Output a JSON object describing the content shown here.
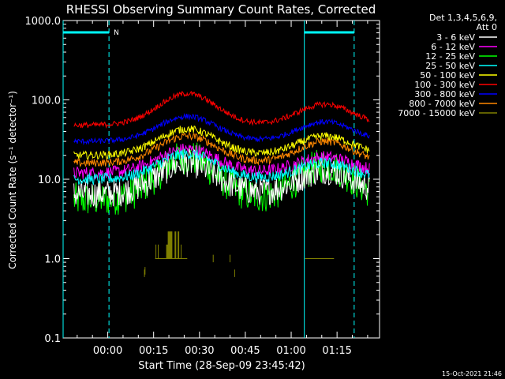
{
  "chart_data": {
    "type": "line",
    "title": "RHESSI Observing Summary Count Rates, Corrected",
    "xlabel": "Start Time (28-Sep-09 23:45:42)",
    "ylabel": "Corrected Count Rate (s⁻¹ detector⁻¹)",
    "yscale": "log",
    "ylim": [
      0.1,
      1000
    ],
    "xlim_minutes": [
      -14.6,
      88.9
    ],
    "yticks": [
      {
        "value": 1000,
        "label": "1000.0"
      },
      {
        "value": 100,
        "label": "100.0"
      },
      {
        "value": 10,
        "label": "10.0"
      },
      {
        "value": 1,
        "label": "1.0"
      },
      {
        "value": 0.1,
        "label": "0.1"
      }
    ],
    "xticks": [
      {
        "value": 0,
        "label": "00:00"
      },
      {
        "value": 15,
        "label": "00:15"
      },
      {
        "value": 30,
        "label": "00:30"
      },
      {
        "value": 45,
        "label": "00:45"
      },
      {
        "value": 60,
        "label": "01:00"
      },
      {
        "value": 75,
        "label": "01:15"
      }
    ],
    "legend_header": [
      "Det 1,3,4,5,6,9,",
      "Att 0"
    ],
    "legend_position": "right",
    "night_marker": "N",
    "night_intervals_minutes": [
      [
        -14.6,
        0.4
      ],
      [
        64.3,
        80.6
      ]
    ],
    "series": [
      {
        "name": "3 - 6 keV",
        "color": "#ffffff",
        "base": 6.5,
        "peak1": 16,
        "peak2": 13,
        "noise": 0.18
      },
      {
        "name": "6 - 12 keV",
        "color": "#ff00ff",
        "base": 12,
        "peak1": 24,
        "peak2": 19,
        "noise": 0.08
      },
      {
        "name": "12 - 25 keV",
        "color": "#00ff00",
        "base": 5.5,
        "peak1": 19,
        "peak2": 15,
        "noise": 0.22
      },
      {
        "name": "25 - 50 keV",
        "color": "#00ffff",
        "base": 10,
        "peak1": 21,
        "peak2": 16,
        "noise": 0.07
      },
      {
        "name": "50 - 100 keV",
        "color": "#ffff00",
        "base": 20,
        "peak1": 43,
        "peak2": 35,
        "noise": 0.05
      },
      {
        "name": "100 - 300 keV",
        "color": "#ff0000",
        "base": 48,
        "peak1": 120,
        "peak2": 88,
        "noise": 0.035
      },
      {
        "name": "300 - 800 keV",
        "color": "#0000ff",
        "base": 30,
        "peak1": 62,
        "peak2": 53,
        "noise": 0.035
      },
      {
        "name": "800 - 7000 keV",
        "color": "#ff8800",
        "base": 16,
        "peak1": 35,
        "peak2": 30,
        "noise": 0.05
      },
      {
        "name": "7000 - 15000 keV",
        "color": "#808000",
        "base": 0.65,
        "peak1": 1.6,
        "peak2": 1.0,
        "noise": 0.04
      }
    ],
    "footer_date": "15-Oct-2021 21:46"
  },
  "colors": {
    "axis": "#ffffff",
    "night": "#00ffff",
    "background": "#000000"
  }
}
